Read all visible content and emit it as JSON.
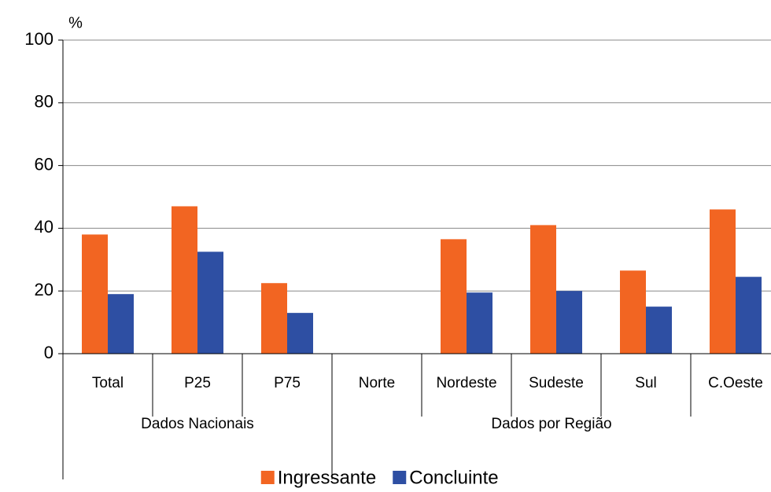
{
  "chart_data": {
    "type": "bar",
    "y_label": "%",
    "categories": [
      "Total",
      "P25",
      "P75",
      "Norte",
      "Nordeste",
      "Sudeste",
      "Sul",
      "C.Oeste"
    ],
    "groups": [
      {
        "label": "Dados Nacionais",
        "size": 3
      },
      {
        "label": "Dados por Região",
        "size": 5
      }
    ],
    "series": [
      {
        "name": "Ingressante",
        "color": "#f26522",
        "values": [
          38,
          47,
          22.5,
          null,
          36.5,
          41,
          26.5,
          46
        ]
      },
      {
        "name": "Concluinte",
        "color": "#2e4fa3",
        "values": [
          19,
          32.5,
          13,
          null,
          19.5,
          20,
          15,
          24.5
        ]
      }
    ],
    "ylim": [
      0,
      100
    ],
    "yticks": [
      0,
      20,
      40,
      60,
      80,
      100
    ],
    "grid": true,
    "legend": "bottom"
  }
}
